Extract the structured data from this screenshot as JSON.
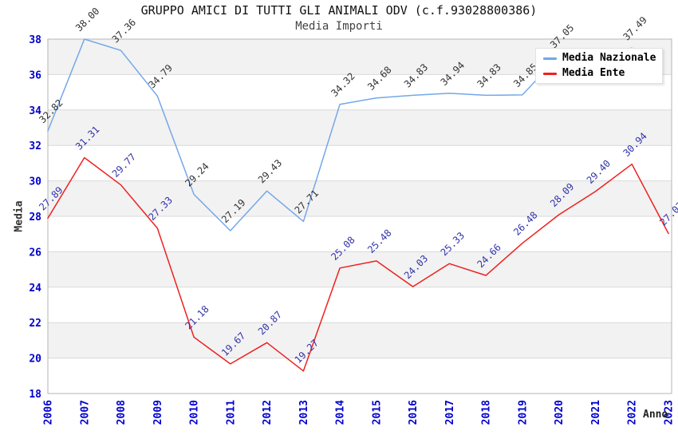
{
  "chart_data": {
    "type": "line",
    "title": "GRUPPO AMICI DI TUTTI GLI ANIMALI ODV (c.f.93028800386)",
    "subtitle": "Media Importi",
    "xlabel": "Anno",
    "ylabel": "Media",
    "x": [
      "2006",
      "2007",
      "2008",
      "2009",
      "2010",
      "2011",
      "2012",
      "2013",
      "2014",
      "2015",
      "2016",
      "2017",
      "2018",
      "2019",
      "2020",
      "2021",
      "2022",
      "2023"
    ],
    "ylim": [
      18,
      38
    ],
    "ytick_step": 2,
    "yticks": [
      18,
      20,
      22,
      24,
      26,
      28,
      30,
      32,
      34,
      36,
      38
    ],
    "axis_color": "#0000cc",
    "band_color": "#f2f2f2",
    "grid_color": "#d9d9d9",
    "border_color": "#b5b5b5",
    "grid": "horizontal gridlines with alternating shaded bands",
    "legend_position": "top-right",
    "series": [
      {
        "name": "Media Nazionale",
        "color": "#74a7e8",
        "label_color": "#333333",
        "values": [
          32.82,
          38.0,
          37.36,
          34.79,
          29.24,
          27.19,
          29.43,
          27.71,
          34.32,
          34.68,
          34.83,
          34.94,
          34.83,
          34.85,
          37.05,
          37.2,
          37.49,
          null
        ],
        "labels": [
          "32.82",
          "38.00",
          "37.36",
          "34.79",
          "29.24",
          "27.19",
          "29.43",
          "27.71",
          "34.32",
          "34.68",
          "34.83",
          "34.94",
          "34.83",
          "34.85",
          "37.05",
          null,
          "37.49",
          null
        ]
      },
      {
        "name": "Media Ente",
        "color": "#ee2020",
        "label_color": "#3333aa",
        "values": [
          27.89,
          31.31,
          29.77,
          27.33,
          21.18,
          19.67,
          20.87,
          19.27,
          25.08,
          25.48,
          24.03,
          25.33,
          24.66,
          26.48,
          28.09,
          29.4,
          30.94,
          27.03
        ],
        "labels": [
          "27.89",
          "31.31",
          "29.77",
          "27.33",
          "21.18",
          "19.67",
          "20.87",
          "19.27",
          "25.08",
          "25.48",
          "24.03",
          "25.33",
          "24.66",
          "26.48",
          "28.09",
          "29.40",
          "30.94",
          "27.03"
        ]
      }
    ]
  }
}
